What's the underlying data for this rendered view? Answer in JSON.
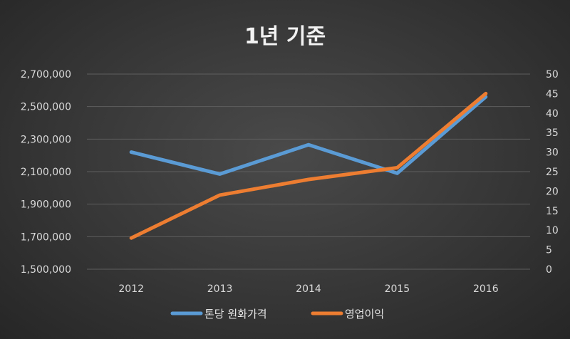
{
  "chart_data": {
    "type": "line",
    "title": "1년 기준",
    "categories": [
      "2012",
      "2013",
      "2014",
      "2015",
      "2016"
    ],
    "y_left": {
      "min": 1500000,
      "max": 2700000,
      "ticks": [
        1500000,
        1700000,
        1900000,
        2100000,
        2300000,
        2500000,
        2700000
      ],
      "tick_labels": [
        "1,500,000",
        "1,700,000",
        "1,900,000",
        "2,100,000",
        "2,300,000",
        "2,500,000",
        "2,700,000"
      ]
    },
    "y_right": {
      "min": 0,
      "max": 50,
      "ticks": [
        0,
        5,
        10,
        15,
        20,
        25,
        30,
        35,
        40,
        45,
        50
      ],
      "tick_labels": [
        "0",
        "5",
        "10",
        "15",
        "20",
        "25",
        "30",
        "35",
        "40",
        "45",
        "50"
      ]
    },
    "series": [
      {
        "name": "톤당 원화가격",
        "axis": "left",
        "color": "#5b9bd5",
        "values": [
          2220000,
          2085000,
          2265000,
          2090000,
          2560000
        ]
      },
      {
        "name": "영업이익",
        "axis": "right",
        "color": "#ed7d31",
        "values": [
          8,
          19,
          23,
          26,
          45
        ]
      }
    ],
    "grid": true,
    "legend_position": "bottom"
  }
}
